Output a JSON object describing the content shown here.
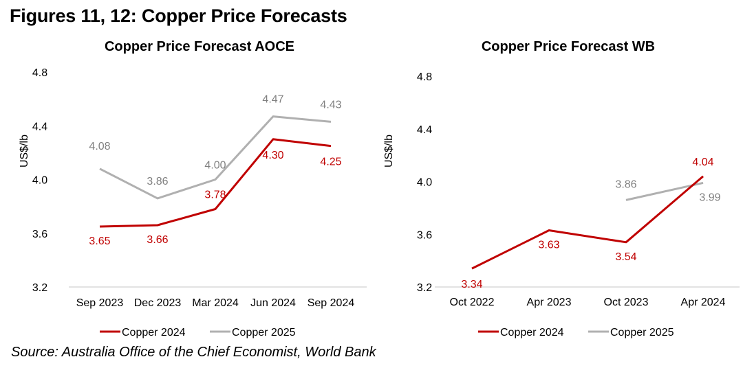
{
  "figure_title": "Figures 11, 12: Copper Price Forecasts",
  "source": "Source: Australia Office of the Chief Economist, World Bank",
  "colors": {
    "copper_2024": "#C00000",
    "copper_2025": "#B0B0B0",
    "label_2025": "#808080",
    "axis": "#D9D9D9"
  },
  "chart_data": [
    {
      "type": "line",
      "title": "Copper Price Forecast AOCE",
      "xlabel": "",
      "ylabel": "US$/lb",
      "ylim": [
        3.2,
        4.8
      ],
      "yticks": [
        "3.2",
        "3.6",
        "4.0",
        "4.4",
        "4.8"
      ],
      "grid": false,
      "legend": "bottom",
      "categories": [
        "Sep 2023",
        "Dec 2023",
        "Mar 2024",
        "Jun 2024",
        "Sep 2024"
      ],
      "series": [
        {
          "name": "Copper 2024",
          "values": [
            3.65,
            3.66,
            3.78,
            4.3,
            4.25
          ],
          "labels": [
            "3.65",
            "3.66",
            "3.78",
            "4.30",
            "4.25"
          ]
        },
        {
          "name": "Copper 2025",
          "values": [
            4.08,
            3.86,
            4.0,
            4.47,
            4.43
          ],
          "labels": [
            "4.08",
            "3.86",
            "4.00",
            "4.47",
            "4.43"
          ]
        }
      ]
    },
    {
      "type": "line",
      "title": "Copper Price Forecast WB",
      "xlabel": "",
      "ylabel": "US$/lb",
      "ylim": [
        3.2,
        4.8
      ],
      "yticks": [
        "3.2",
        "3.6",
        "4.0",
        "4.4",
        "4.8"
      ],
      "grid": false,
      "legend": "bottom",
      "categories": [
        "Oct 2022",
        "Apr 2023",
        "Oct 2023",
        "Apr 2024"
      ],
      "series": [
        {
          "name": "Copper 2024",
          "values": [
            3.34,
            3.63,
            3.54,
            4.04
          ],
          "labels": [
            "3.34",
            "3.63",
            "3.54",
            "4.04"
          ]
        },
        {
          "name": "Copper 2025",
          "values": [
            null,
            null,
            3.86,
            3.99
          ],
          "labels": [
            null,
            null,
            "3.86",
            "3.99"
          ]
        }
      ]
    }
  ]
}
